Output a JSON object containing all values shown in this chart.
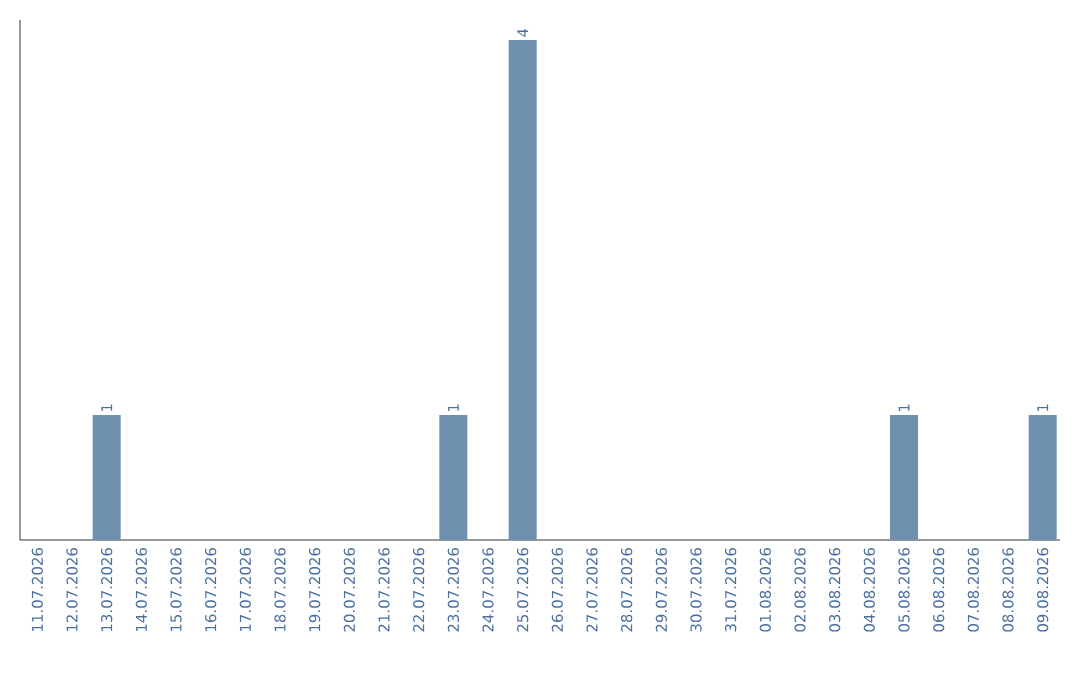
{
  "chart_data": {
    "type": "bar",
    "categories": [
      "11.07.2026",
      "12.07.2026",
      "13.07.2026",
      "14.07.2026",
      "15.07.2026",
      "16.07.2026",
      "17.07.2026",
      "18.07.2026",
      "19.07.2026",
      "20.07.2026",
      "21.07.2026",
      "22.07.2026",
      "23.07.2026",
      "24.07.2026",
      "25.07.2026",
      "26.07.2026",
      "27.07.2026",
      "28.07.2026",
      "29.07.2026",
      "30.07.2026",
      "31.07.2026",
      "01.08.2026",
      "02.08.2026",
      "03.08.2026",
      "04.08.2026",
      "05.08.2026",
      "06.08.2026",
      "07.08.2026",
      "08.08.2026",
      "09.08.2026"
    ],
    "values": [
      0,
      0,
      1,
      0,
      0,
      0,
      0,
      0,
      0,
      0,
      0,
      0,
      1,
      0,
      4,
      0,
      0,
      0,
      0,
      0,
      0,
      0,
      0,
      0,
      0,
      1,
      0,
      0,
      0,
      1
    ],
    "value_labels": [
      null,
      null,
      "1",
      null,
      null,
      null,
      null,
      null,
      null,
      null,
      null,
      null,
      "1",
      null,
      "4",
      null,
      null,
      null,
      null,
      null,
      null,
      null,
      null,
      null,
      null,
      "1",
      null,
      null,
      null,
      "1"
    ],
    "color": "#6e8fad",
    "tick_labels": "x"
  }
}
